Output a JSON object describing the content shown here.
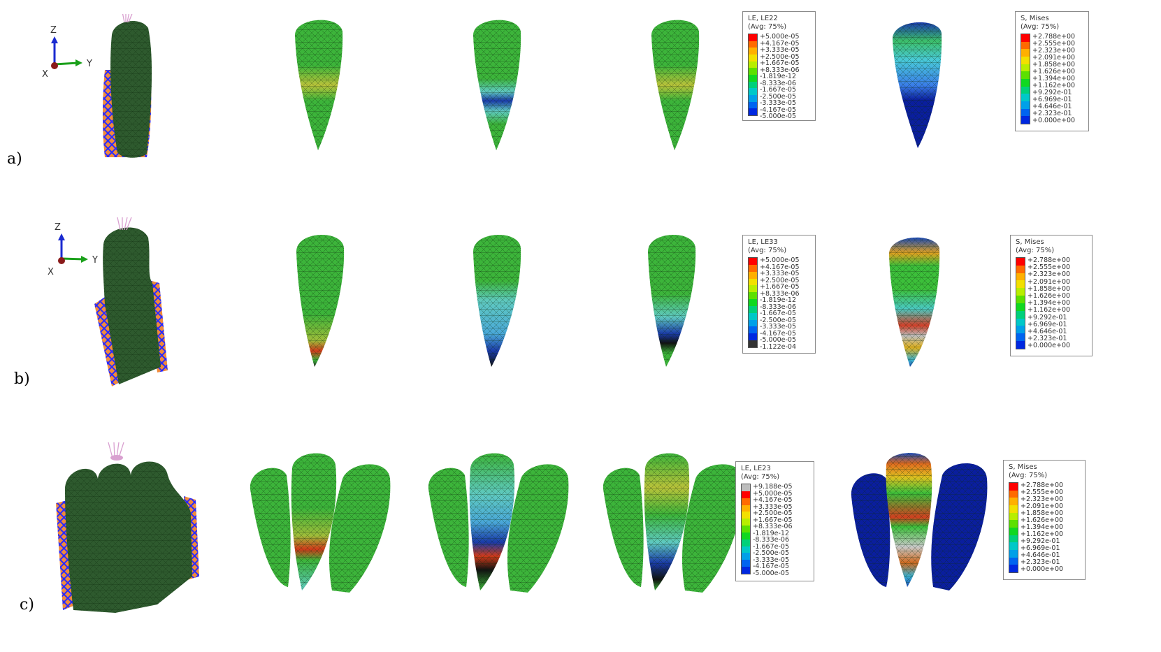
{
  "row_labels": [
    "a)",
    "b)",
    "c)"
  ],
  "axes_triad": {
    "z": "Z",
    "y": "Y",
    "x": "X"
  },
  "colors": {
    "mesh_dark": "#2e5a2e",
    "mesh_green": "#3cb43a",
    "strain_blue": "#1a3aa8",
    "stress_blue": "#0a1e9e",
    "boundary_orange": "#f08a3c",
    "boundary_blue": "#2a2aff",
    "load_pink": "#d9a0d0"
  },
  "legend_colors": [
    "#ff0000",
    "#ff6a00",
    "#ffb000",
    "#f2e000",
    "#b8ee00",
    "#5ce000",
    "#10d820",
    "#00d07a",
    "#00c8c8",
    "#00a0e8",
    "#0064f0",
    "#0028e0"
  ],
  "legends": {
    "a_strain": {
      "title": "LE, LE22",
      "avg": "(Avg: 75%)",
      "values": [
        "+5.000e-05",
        "+4.167e-05",
        "+3.333e-05",
        "+2.500e-05",
        "+1.667e-05",
        "+8.333e-06",
        "-1.819e-12",
        "-8.333e-06",
        "-1.667e-05",
        "-2.500e-05",
        "-3.333e-05",
        "-4.167e-05",
        "-5.000e-05"
      ]
    },
    "a_stress": {
      "title": "S, Mises",
      "avg": "(Avg: 75%)",
      "values": [
        "+2.788e+00",
        "+2.555e+00",
        "+2.323e+00",
        "+2.091e+00",
        "+1.858e+00",
        "+1.626e+00",
        "+1.394e+00",
        "+1.162e+00",
        "+9.292e-01",
        "+6.969e-01",
        "+4.646e-01",
        "+2.323e-01",
        "+0.000e+00"
      ]
    },
    "b_strain": {
      "title": "LE, LE33",
      "avg": "(Avg: 75%)",
      "values": [
        "+5.000e-05",
        "+4.167e-05",
        "+3.333e-05",
        "+2.500e-05",
        "+1.667e-05",
        "+8.333e-06",
        "-1.819e-12",
        "-8.333e-06",
        "-1.667e-05",
        "-2.500e-05",
        "-3.333e-05",
        "-4.167e-05",
        "-5.000e-05",
        "-1.122e-04"
      ]
    },
    "b_stress": {
      "title": "S, Mises",
      "avg": "(Avg: 75%)",
      "values": [
        "+2.788e+00",
        "+2.555e+00",
        "+2.323e+00",
        "+2.091e+00",
        "+1.858e+00",
        "+1.626e+00",
        "+1.394e+00",
        "+1.162e+00",
        "+9.292e-01",
        "+6.969e-01",
        "+4.646e-01",
        "+2.323e-01",
        "+0.000e+00"
      ]
    },
    "c_strain": {
      "title": "LE, LE23",
      "avg": "(Avg: 75%)",
      "values": [
        "+9.188e-05",
        "+5.000e-05",
        "+4.167e-05",
        "+3.333e-05",
        "+2.500e-05",
        "+1.667e-05",
        "+8.333e-06",
        "-1.819e-12",
        "-8.333e-06",
        "-1.667e-05",
        "-2.500e-05",
        "-3.333e-05",
        "-4.167e-05",
        "-5.000e-05"
      ]
    },
    "c_stress": {
      "title": "S, Mises",
      "avg": "(Avg: 75%)",
      "values": [
        "+2.788e+00",
        "+2.555e+00",
        "+2.323e+00",
        "+2.091e+00",
        "+1.858e+00",
        "+1.626e+00",
        "+1.394e+00",
        "+1.162e+00",
        "+9.292e-01",
        "+6.969e-01",
        "+4.646e-01",
        "+2.323e-01",
        "+0.000e+00"
      ]
    }
  }
}
